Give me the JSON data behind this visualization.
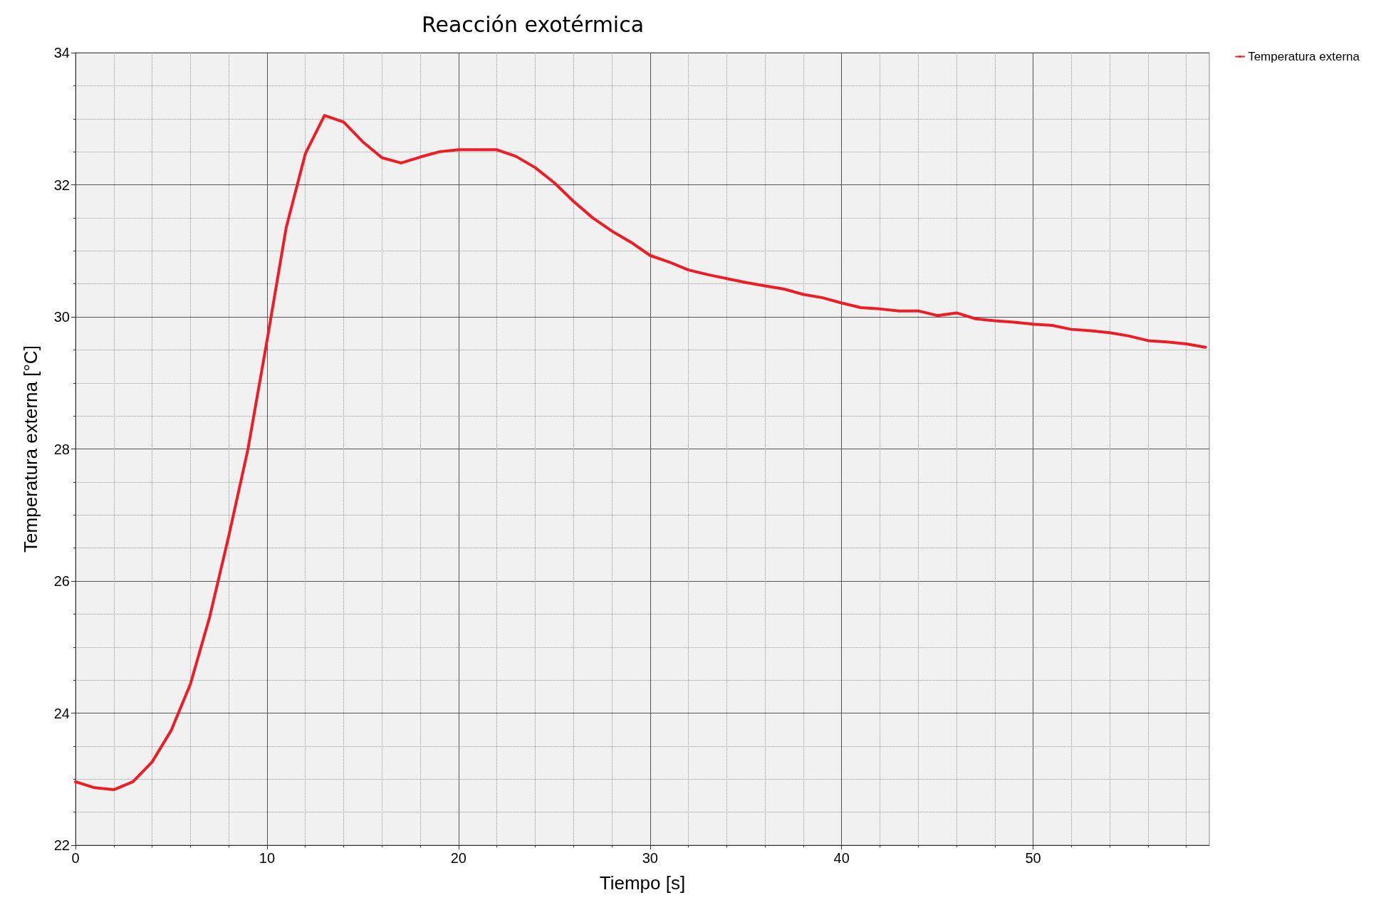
{
  "chart_data": {
    "type": "line",
    "title": "Reacción exotérmica",
    "xlabel": "Tiempo [s]",
    "ylabel": "Temperatura externa [°C]",
    "x": [
      0,
      1,
      2,
      3,
      4,
      5,
      6,
      7,
      8,
      9,
      10,
      11,
      12,
      13,
      14,
      15,
      16,
      17,
      18,
      19,
      20,
      21,
      22,
      23,
      24,
      25,
      26,
      27,
      28,
      29,
      30,
      31,
      32,
      33,
      34,
      35,
      36,
      37,
      38,
      39,
      40,
      41,
      42,
      43,
      44,
      45,
      46,
      47,
      48,
      49,
      50,
      51,
      52,
      53,
      54,
      55,
      56,
      57,
      58,
      59
    ],
    "series": [
      {
        "name": "Temperatura externa",
        "color": "#ee1c25",
        "values": [
          22.96,
          22.87,
          22.84,
          22.96,
          23.26,
          23.74,
          24.44,
          25.45,
          26.68,
          27.99,
          29.64,
          31.35,
          32.47,
          33.05,
          32.95,
          32.65,
          32.41,
          32.33,
          32.42,
          32.5,
          32.53,
          32.53,
          32.53,
          32.43,
          32.26,
          32.03,
          31.75,
          31.5,
          31.3,
          31.13,
          30.93,
          30.83,
          30.71,
          30.64,
          30.58,
          30.52,
          30.47,
          30.42,
          30.34,
          30.29,
          30.21,
          30.14,
          30.12,
          30.09,
          30.09,
          30.02,
          30.06,
          29.97,
          29.94,
          29.92,
          29.89,
          29.87,
          29.81,
          29.79,
          29.76,
          29.71,
          29.64,
          29.62,
          29.59,
          29.54
        ]
      }
    ],
    "xlim": [
      0,
      59.2
    ],
    "xticks": [
      0,
      10,
      20,
      30,
      40,
      50
    ],
    "ylim": [
      22,
      34
    ],
    "yticks": [
      22,
      24,
      26,
      28,
      30,
      32,
      34
    ],
    "grid": true,
    "legend": "top right",
    "marker": "none",
    "line_style": "solid"
  }
}
